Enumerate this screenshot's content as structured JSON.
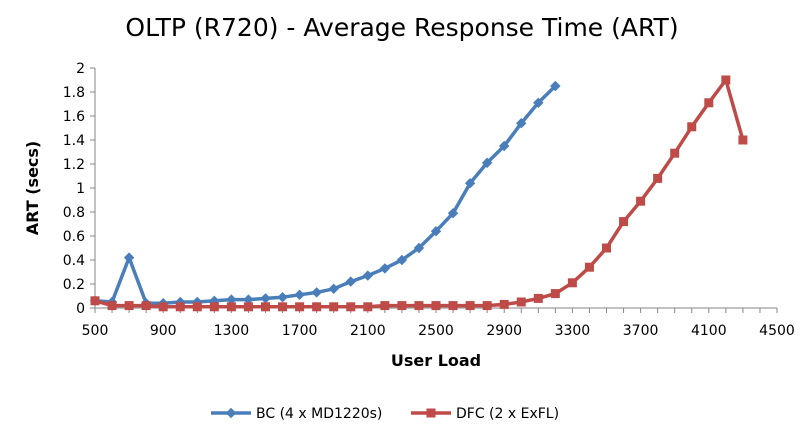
{
  "chart_data": {
    "type": "line",
    "title": "OLTP (R720) - Average Response Time (ART)",
    "xlabel": "User Load",
    "ylabel": "ART (secs)",
    "xlim": [
      500,
      4500
    ],
    "ylim": [
      0,
      2
    ],
    "x_ticks": [
      500,
      900,
      1300,
      1700,
      2100,
      2500,
      2900,
      3300,
      3700,
      4100,
      4500
    ],
    "y_ticks": [
      0,
      0.2,
      0.4,
      0.6,
      0.8,
      1,
      1.2,
      1.4,
      1.6,
      1.8,
      2
    ],
    "y_tick_labels": [
      "0",
      "0.2",
      "0.4",
      "0.6",
      "0.8",
      "1",
      "1.2",
      "1.4",
      "1.6",
      "1.8",
      "2"
    ],
    "grid": false,
    "legend_position": "bottom",
    "series": [
      {
        "name": "BC (4 x MD1220s)",
        "color": "#4a7ebb",
        "marker": "diamond",
        "x": [
          500,
          600,
          700,
          800,
          900,
          1000,
          1100,
          1200,
          1300,
          1400,
          1500,
          1600,
          1700,
          1800,
          1900,
          2000,
          2100,
          2200,
          2300,
          2400,
          2500,
          2600,
          2700,
          2800,
          2900,
          3000,
          3100,
          3200
        ],
        "y": [
          0.06,
          0.05,
          0.42,
          0.04,
          0.04,
          0.05,
          0.05,
          0.06,
          0.07,
          0.07,
          0.08,
          0.09,
          0.11,
          0.13,
          0.16,
          0.22,
          0.27,
          0.33,
          0.4,
          0.5,
          0.64,
          0.79,
          1.04,
          1.21,
          1.35,
          1.54,
          1.71,
          1.85
        ]
      },
      {
        "name": "DFC (2 x ExFL)",
        "color": "#be4b48",
        "marker": "square",
        "x": [
          500,
          600,
          700,
          800,
          900,
          1000,
          1100,
          1200,
          1300,
          1400,
          1500,
          1600,
          1700,
          1800,
          1900,
          2000,
          2100,
          2200,
          2300,
          2400,
          2500,
          2600,
          2700,
          2800,
          2900,
          3000,
          3100,
          3200,
          3300,
          3400,
          3500,
          3600,
          3700,
          3800,
          3900,
          4000,
          4100,
          4200,
          4300
        ],
        "y": [
          0.06,
          0.02,
          0.02,
          0.02,
          0.01,
          0.01,
          0.01,
          0.01,
          0.01,
          0.01,
          0.01,
          0.01,
          0.01,
          0.01,
          0.01,
          0.01,
          0.01,
          0.02,
          0.02,
          0.02,
          0.02,
          0.02,
          0.02,
          0.02,
          0.03,
          0.05,
          0.08,
          0.12,
          0.21,
          0.34,
          0.5,
          0.72,
          0.89,
          1.08,
          1.29,
          1.51,
          1.71,
          1.9,
          1.4
        ]
      }
    ]
  }
}
